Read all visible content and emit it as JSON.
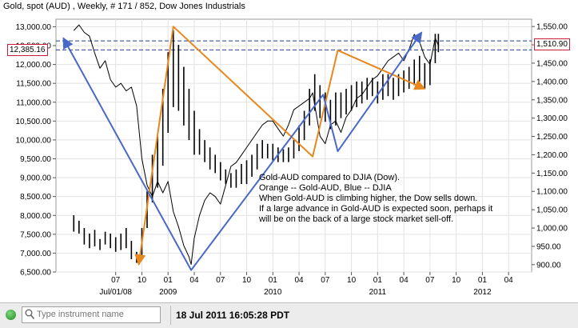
{
  "chart_title": "Gold, spot (AUD) , Weekly, # 171 / 852, Dow Jones Industrials",
  "price_labels": {
    "left": "12,385.16",
    "right": "1,510.90"
  },
  "annotation": [
    "Gold-AUD compared to DJIA (Dow).",
    "Orange -- Gold-AUD, Blue -- DJIA",
    "When Gold-AUD is climbing higher, the Dow sells down.",
    "If a large advance in Gold-AUD is expected soon, perhaps it",
    "will be on the back of a large stock market sell-off."
  ],
  "statusbar": {
    "search_placeholder": "Type instrument name",
    "timestamp": "18 Jul 2011 16:05:28 PDT"
  },
  "icons": {
    "status": "status-green-dot-icon",
    "search": "search-icon"
  },
  "colors": {
    "orange": "#e8871e",
    "blue": "#4a68c8",
    "price_line": "#c8203a",
    "dashed": "#1f3f8f"
  },
  "chart_data": {
    "type": "line",
    "left_axis": {
      "ylim": [
        6500,
        13200
      ],
      "ticks": [
        "6,500.00",
        "7,000.00",
        "7,500.00",
        "8,000.00",
        "8,500.00",
        "9,000.00",
        "9,500.00",
        "10,000.00",
        "10,500.00",
        "11,000.00",
        "11,500.00",
        "12,000.00",
        "12,500.00",
        "13,000.00"
      ]
    },
    "right_axis": {
      "ylim": [
        880,
        1570
      ],
      "ticks": [
        "900.00",
        "950.00",
        "1,000.00",
        "1,050.00",
        "1,100.00",
        "1,150.00",
        "1,200.00",
        "1,250.00",
        "1,300.00",
        "1,350.00",
        "1,400.00",
        "1,450.00",
        "1,500.00",
        "1,550.00"
      ]
    },
    "x_axis": {
      "month_ticks": [
        {
          "t": 2008.5,
          "label": "07"
        },
        {
          "t": 2008.75,
          "label": "10"
        },
        {
          "t": 2009.0,
          "label": "01"
        },
        {
          "t": 2009.25,
          "label": "04"
        },
        {
          "t": 2009.5,
          "label": "07"
        },
        {
          "t": 2009.75,
          "label": "10"
        },
        {
          "t": 2010.0,
          "label": "01"
        },
        {
          "t": 2010.25,
          "label": "04"
        },
        {
          "t": 2010.5,
          "label": "07"
        },
        {
          "t": 2010.75,
          "label": "10"
        },
        {
          "t": 2011.0,
          "label": "01"
        },
        {
          "t": 2011.25,
          "label": "04"
        },
        {
          "t": 2011.5,
          "label": "07"
        },
        {
          "t": 2011.75,
          "label": "10"
        },
        {
          "t": 2012.0,
          "label": "01"
        },
        {
          "t": 2012.25,
          "label": "04"
        }
      ],
      "year_labels": [
        {
          "t": 2008.5,
          "label": "Jul/01/08"
        },
        {
          "t": 2009.0,
          "label": "2009"
        },
        {
          "t": 2010.0,
          "label": "2010"
        },
        {
          "t": 2011.0,
          "label": "2011"
        },
        {
          "t": 2012.0,
          "label": "2012"
        }
      ]
    },
    "dashed_levels": {
      "dow": 12385.16,
      "gold": 1510.9
    },
    "series": [
      {
        "name": "Dow Jones Industrials",
        "axis": "left",
        "color": "#000000",
        "points": [
          [
            2008.1,
            12900
          ],
          [
            2008.15,
            13050
          ],
          [
            2008.2,
            12850
          ],
          [
            2008.25,
            12750
          ],
          [
            2008.3,
            12300
          ],
          [
            2008.35,
            11900
          ],
          [
            2008.4,
            12100
          ],
          [
            2008.45,
            11600
          ],
          [
            2008.5,
            11400
          ],
          [
            2008.55,
            11500
          ],
          [
            2008.6,
            11300
          ],
          [
            2008.65,
            11400
          ],
          [
            2008.7,
            10900
          ],
          [
            2008.75,
            9500
          ],
          [
            2008.8,
            8800
          ],
          [
            2008.85,
            8500
          ],
          [
            2008.9,
            8900
          ],
          [
            2008.95,
            8600
          ],
          [
            2009.0,
            8900
          ],
          [
            2009.05,
            8100
          ],
          [
            2009.1,
            7700
          ],
          [
            2009.15,
            7200
          ],
          [
            2009.2,
            6900
          ],
          [
            2009.22,
            6700
          ],
          [
            2009.25,
            7400
          ],
          [
            2009.3,
            8000
          ],
          [
            2009.35,
            8400
          ],
          [
            2009.4,
            8600
          ],
          [
            2009.45,
            8500
          ],
          [
            2009.5,
            8300
          ],
          [
            2009.55,
            8800
          ],
          [
            2009.6,
            9300
          ],
          [
            2009.65,
            9400
          ],
          [
            2009.7,
            9600
          ],
          [
            2009.75,
            9800
          ],
          [
            2009.8,
            10000
          ],
          [
            2009.85,
            10200
          ],
          [
            2009.9,
            10400
          ],
          [
            2009.95,
            10500
          ],
          [
            2010.0,
            10500
          ],
          [
            2010.05,
            10300
          ],
          [
            2010.1,
            10100
          ],
          [
            2010.15,
            10400
          ],
          [
            2010.2,
            10800
          ],
          [
            2010.25,
            10900
          ],
          [
            2010.3,
            11000
          ],
          [
            2010.35,
            11100
          ],
          [
            2010.38,
            11250
          ],
          [
            2010.42,
            10600
          ],
          [
            2010.45,
            10100
          ],
          [
            2010.5,
            9900
          ],
          [
            2010.55,
            10400
          ],
          [
            2010.6,
            10500
          ],
          [
            2010.65,
            10200
          ],
          [
            2010.7,
            10600
          ],
          [
            2010.75,
            10800
          ],
          [
            2010.8,
            11100
          ],
          [
            2010.85,
            11200
          ],
          [
            2010.9,
            11400
          ],
          [
            2010.95,
            11600
          ],
          [
            2011.0,
            11700
          ],
          [
            2011.05,
            11900
          ],
          [
            2011.1,
            12100
          ],
          [
            2011.15,
            12200
          ],
          [
            2011.2,
            12300
          ],
          [
            2011.25,
            12100
          ],
          [
            2011.3,
            12400
          ],
          [
            2011.35,
            12800
          ],
          [
            2011.4,
            12600
          ],
          [
            2011.45,
            12200
          ],
          [
            2011.5,
            12000
          ],
          [
            2011.55,
            12700
          ],
          [
            2011.58,
            12500
          ]
        ]
      },
      {
        "name": "Gold, spot (AUD)",
        "axis": "right",
        "color": "#000000",
        "candles": [
          [
            2008.1,
            990,
            1035
          ],
          [
            2008.15,
            985,
            1020
          ],
          [
            2008.2,
            955,
            1000
          ],
          [
            2008.25,
            945,
            985
          ],
          [
            2008.3,
            950,
            995
          ],
          [
            2008.35,
            940,
            970
          ],
          [
            2008.4,
            955,
            990
          ],
          [
            2008.45,
            945,
            985
          ],
          [
            2008.5,
            935,
            975
          ],
          [
            2008.55,
            940,
            985
          ],
          [
            2008.6,
            945,
            1000
          ],
          [
            2008.65,
            915,
            965
          ],
          [
            2008.7,
            905,
            935
          ],
          [
            2008.75,
            915,
            1000
          ],
          [
            2008.8,
            1000,
            1100
          ],
          [
            2008.85,
            1070,
            1200
          ],
          [
            2008.9,
            1110,
            1250
          ],
          [
            2008.95,
            1170,
            1380
          ],
          [
            2009.0,
            1260,
            1480
          ],
          [
            2009.05,
            1330,
            1540
          ],
          [
            2009.1,
            1320,
            1500
          ],
          [
            2009.15,
            1280,
            1440
          ],
          [
            2009.2,
            1240,
            1380
          ],
          [
            2009.25,
            1200,
            1320
          ],
          [
            2009.3,
            1200,
            1270
          ],
          [
            2009.35,
            1180,
            1240
          ],
          [
            2009.4,
            1160,
            1220
          ],
          [
            2009.45,
            1150,
            1200
          ],
          [
            2009.5,
            1130,
            1180
          ],
          [
            2009.55,
            1120,
            1160
          ],
          [
            2009.6,
            1110,
            1150
          ],
          [
            2009.65,
            1110,
            1160
          ],
          [
            2009.7,
            1120,
            1175
          ],
          [
            2009.75,
            1120,
            1185
          ],
          [
            2009.8,
            1140,
            1200
          ],
          [
            2009.85,
            1160,
            1230
          ],
          [
            2009.9,
            1190,
            1240
          ],
          [
            2009.95,
            1190,
            1230
          ],
          [
            2010.0,
            1180,
            1230
          ],
          [
            2010.05,
            1180,
            1220
          ],
          [
            2010.1,
            1180,
            1215
          ],
          [
            2010.15,
            1180,
            1220
          ],
          [
            2010.2,
            1190,
            1240
          ],
          [
            2010.25,
            1210,
            1280
          ],
          [
            2010.3,
            1240,
            1320
          ],
          [
            2010.35,
            1280,
            1380
          ],
          [
            2010.4,
            1320,
            1420
          ],
          [
            2010.45,
            1300,
            1390
          ],
          [
            2010.5,
            1290,
            1370
          ],
          [
            2010.55,
            1270,
            1350
          ],
          [
            2010.6,
            1280,
            1370
          ],
          [
            2010.65,
            1300,
            1370
          ],
          [
            2010.7,
            1310,
            1380
          ],
          [
            2010.75,
            1320,
            1390
          ],
          [
            2010.8,
            1330,
            1400
          ],
          [
            2010.85,
            1340,
            1400
          ],
          [
            2010.9,
            1350,
            1410
          ],
          [
            2010.95,
            1360,
            1410
          ],
          [
            2011.0,
            1340,
            1400
          ],
          [
            2011.05,
            1350,
            1420
          ],
          [
            2011.1,
            1360,
            1420
          ],
          [
            2011.15,
            1350,
            1410
          ],
          [
            2011.2,
            1360,
            1420
          ],
          [
            2011.25,
            1370,
            1430
          ],
          [
            2011.3,
            1380,
            1440
          ],
          [
            2011.35,
            1390,
            1460
          ],
          [
            2011.4,
            1400,
            1470
          ],
          [
            2011.45,
            1380,
            1450
          ],
          [
            2011.5,
            1390,
            1460
          ],
          [
            2011.55,
            1450,
            1530
          ],
          [
            2011.58,
            1480,
            1530
          ]
        ]
      },
      {
        "name": "Orange",
        "axis": "right",
        "color": "#e8871e",
        "points": [
          [
            2008.72,
            900
          ],
          [
            2009.05,
            1550
          ],
          [
            2010.38,
            1195
          ],
          [
            2010.62,
            1485
          ],
          [
            2011.45,
            1380
          ]
        ]
      },
      {
        "name": "Blue",
        "axis": "left",
        "color": "#4a68c8",
        "points": [
          [
            2008.0,
            12700
          ],
          [
            2009.22,
            6550
          ],
          [
            2010.48,
            11200
          ],
          [
            2010.62,
            9700
          ],
          [
            2011.42,
            12850
          ]
        ]
      }
    ]
  }
}
